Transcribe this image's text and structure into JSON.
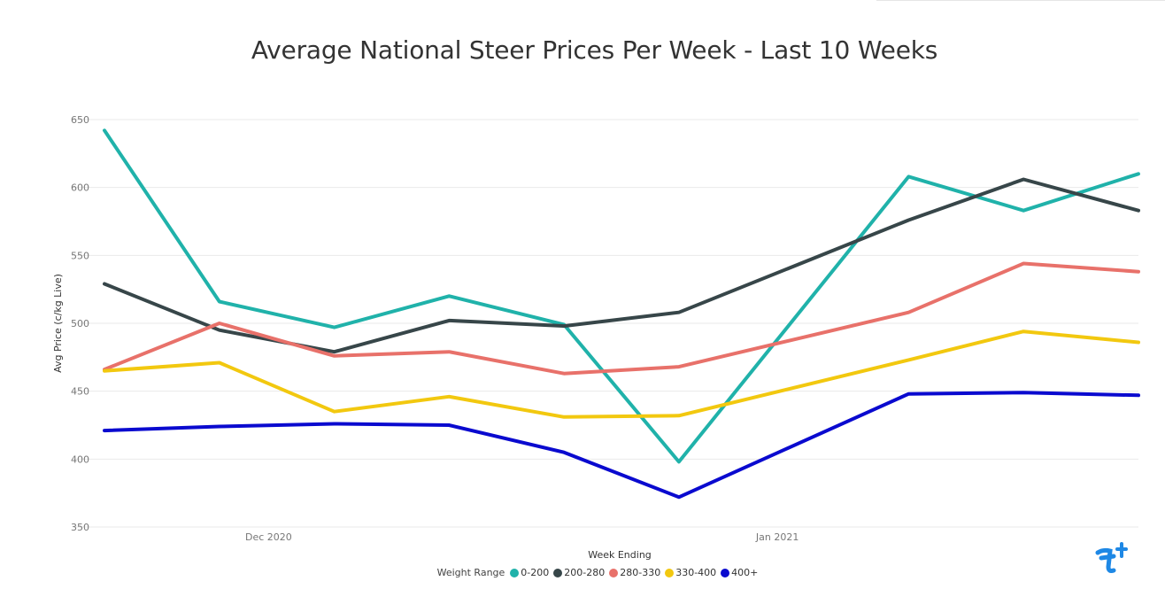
{
  "chart_data": {
    "type": "line",
    "title": "Average National Steer Prices Per Week - Last 10 Weeks",
    "xlabel": "Week Ending",
    "ylabel": "Avg Price (c/kg Live)",
    "x_tick_labels": [
      "Dec 2020",
      "Jan 2021"
    ],
    "x": [
      "2020-11-21",
      "2020-11-28",
      "2020-12-05",
      "2020-12-12",
      "2020-12-19",
      "2020-12-26",
      "2021-01-09",
      "2021-01-16",
      "2021-01-23"
    ],
    "x_ticks": [
      "2020-12-01",
      "2021-01-01"
    ],
    "x_range": [
      "2020-11-21",
      "2021-01-23"
    ],
    "ylim": [
      350,
      650
    ],
    "yticks": [
      350,
      400,
      450,
      500,
      550,
      600,
      650
    ],
    "grid": true,
    "legend_title": "Weight Range",
    "legend_position": "bottom",
    "series": [
      {
        "name": "0-200",
        "color": "#20b2aa",
        "values": [
          642,
          516,
          497,
          520,
          499,
          398,
          608,
          583,
          610
        ]
      },
      {
        "name": "200-280",
        "color": "#374649",
        "values": [
          529,
          495,
          479,
          502,
          498,
          508,
          576,
          606,
          583
        ]
      },
      {
        "name": "280-330",
        "color": "#e8716a",
        "values": [
          466,
          500,
          476,
          479,
          463,
          468,
          508,
          544,
          538
        ]
      },
      {
        "name": "330-400",
        "color": "#f2c80f",
        "values": [
          465,
          471,
          435,
          446,
          431,
          432,
          473,
          494,
          486
        ]
      },
      {
        "name": "400+",
        "color": "#0a0acf",
        "values": [
          421,
          424,
          426,
          425,
          405,
          372,
          448,
          449,
          447
        ]
      }
    ]
  },
  "logo": {
    "name": "brand-logo",
    "color": "#1e88e5"
  }
}
